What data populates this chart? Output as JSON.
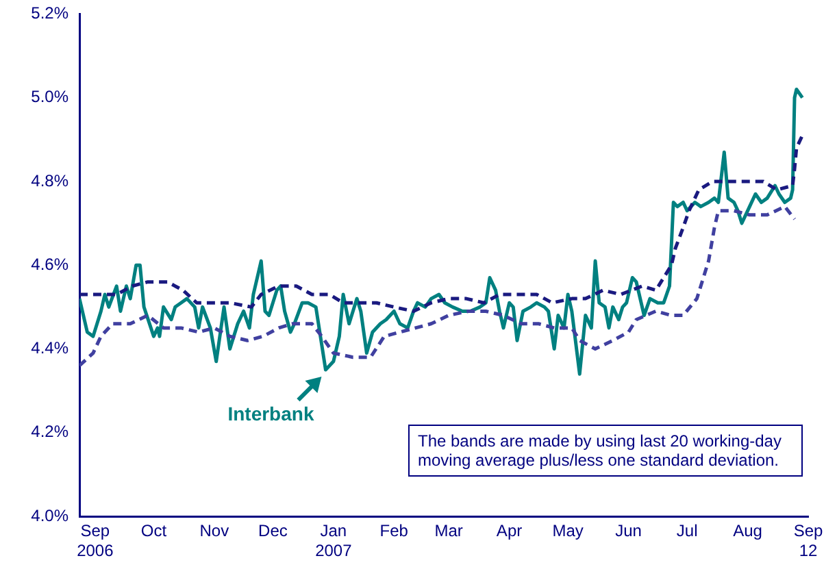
{
  "chart_data": {
    "type": "line",
    "xlim": [
      "2006-09-04",
      "2007-09-12"
    ],
    "xticks": [
      {
        "value": "2006-09-12",
        "label": "Sep\n2006"
      },
      {
        "value": "2006-10-12",
        "label": "Oct"
      },
      {
        "value": "2006-11-12",
        "label": "Nov"
      },
      {
        "value": "2006-12-12",
        "label": "Dec"
      },
      {
        "value": "2007-01-12",
        "label": "Jan\n2007"
      },
      {
        "value": "2007-02-12",
        "label": "Feb"
      },
      {
        "value": "2007-03-12",
        "label": "Mar"
      },
      {
        "value": "2007-04-12",
        "label": "Apr"
      },
      {
        "value": "2007-05-12",
        "label": "May"
      },
      {
        "value": "2007-06-12",
        "label": "Jun"
      },
      {
        "value": "2007-07-12",
        "label": "Jul"
      },
      {
        "value": "2007-08-12",
        "label": "Aug"
      },
      {
        "value": "2007-09-12",
        "label": "Sep\n12"
      }
    ],
    "ylim": [
      4.0,
      5.2
    ],
    "yticks": [
      {
        "value": 4.0,
        "label": "4.0%"
      },
      {
        "value": 4.2,
        "label": "4.2%"
      },
      {
        "value": 4.4,
        "label": "4.4%"
      },
      {
        "value": 4.6,
        "label": "4.6%"
      },
      {
        "value": 4.8,
        "label": "4.8%"
      },
      {
        "value": 5.0,
        "label": "5.0%"
      },
      {
        "value": 5.2,
        "label": "5.2%"
      }
    ],
    "grid": false,
    "legend": false,
    "marker": "none",
    "series": [
      {
        "color": "#1a1a80",
        "line_style": "dashed",
        "x": [
          "2006-09-04",
          "2006-09-14",
          "2006-09-23",
          "2006-10-01",
          "2006-10-09",
          "2006-10-19",
          "2006-10-27",
          "2006-11-03",
          "2006-11-12",
          "2006-11-20",
          "2006-12-01",
          "2006-12-06",
          "2006-12-15",
          "2006-12-24",
          "2007-01-01",
          "2007-01-10",
          "2007-01-17",
          "2007-01-25",
          "2007-02-03",
          "2007-02-12",
          "2007-02-22",
          "2007-03-03",
          "2007-03-12",
          "2007-03-21",
          "2007-03-30",
          "2007-04-07",
          "2007-04-16",
          "2007-04-26",
          "2007-05-04",
          "2007-05-14",
          "2007-05-21",
          "2007-05-30",
          "2007-06-08",
          "2007-06-19",
          "2007-06-26",
          "2007-07-04",
          "2007-07-06",
          "2007-07-10",
          "2007-07-13",
          "2007-07-18",
          "2007-07-25",
          "2007-08-02",
          "2007-08-12",
          "2007-08-20",
          "2007-08-27",
          "2007-09-04",
          "2007-09-05",
          "2007-09-06",
          "2007-09-09"
        ],
        "values": [
          4.53,
          4.53,
          4.53,
          4.55,
          4.56,
          4.56,
          4.54,
          4.51,
          4.51,
          4.51,
          4.5,
          4.53,
          4.55,
          4.55,
          4.53,
          4.53,
          4.51,
          4.51,
          4.51,
          4.5,
          4.49,
          4.51,
          4.52,
          4.52,
          4.51,
          4.53,
          4.53,
          4.53,
          4.51,
          4.52,
          4.52,
          4.54,
          4.53,
          4.55,
          4.54,
          4.6,
          4.64,
          4.69,
          4.73,
          4.78,
          4.8,
          4.8,
          4.8,
          4.8,
          4.78,
          4.79,
          4.83,
          4.88,
          4.91
        ]
      },
      {
        "color": "#4040a0",
        "line_style": "dashed",
        "x": [
          "2006-09-04",
          "2006-09-11",
          "2006-09-15",
          "2006-09-21",
          "2006-09-30",
          "2006-10-09",
          "2006-10-17",
          "2006-10-26",
          "2006-11-04",
          "2006-11-12",
          "2006-11-20",
          "2006-11-29",
          "2006-12-07",
          "2006-12-15",
          "2006-12-22",
          "2007-01-01",
          "2007-01-06",
          "2007-01-12",
          "2007-01-22",
          "2007-01-31",
          "2007-02-07",
          "2007-02-15",
          "2007-02-23",
          "2007-03-03",
          "2007-03-12",
          "2007-03-22",
          "2007-03-31",
          "2007-04-09",
          "2007-04-18",
          "2007-04-27",
          "2007-05-05",
          "2007-05-14",
          "2007-05-18",
          "2007-05-26",
          "2007-06-04",
          "2007-06-12",
          "2007-06-16",
          "2007-06-26",
          "2007-07-04",
          "2007-07-10",
          "2007-07-17",
          "2007-07-23",
          "2007-07-26",
          "2007-07-28",
          "2007-08-05",
          "2007-08-13",
          "2007-08-22",
          "2007-08-31",
          "2007-09-05"
        ],
        "values": [
          4.36,
          4.39,
          4.43,
          4.46,
          4.46,
          4.48,
          4.45,
          4.45,
          4.44,
          4.45,
          4.43,
          4.42,
          4.43,
          4.45,
          4.46,
          4.46,
          4.43,
          4.39,
          4.38,
          4.38,
          4.43,
          4.44,
          4.45,
          4.46,
          4.48,
          4.49,
          4.49,
          4.48,
          4.46,
          4.46,
          4.45,
          4.45,
          4.42,
          4.4,
          4.42,
          4.44,
          4.47,
          4.49,
          4.48,
          4.48,
          4.52,
          4.61,
          4.69,
          4.73,
          4.73,
          4.72,
          4.72,
          4.74,
          4.71
        ]
      },
      {
        "color": "#008080",
        "line_style": "solid",
        "x": [
          "2006-09-04",
          "2006-09-08",
          "2006-09-11",
          "2006-09-15",
          "2006-09-17",
          "2006-09-19",
          "2006-09-23",
          "2006-09-25",
          "2006-09-28",
          "2006-09-30",
          "2006-10-03",
          "2006-10-05",
          "2006-10-07",
          "2006-10-12",
          "2006-10-14",
          "2006-10-15",
          "2006-10-17",
          "2006-10-21",
          "2006-10-23",
          "2006-10-26",
          "2006-10-29",
          "2006-11-02",
          "2006-11-04",
          "2006-11-06",
          "2006-11-10",
          "2006-11-13",
          "2006-11-17",
          "2006-11-20",
          "2006-11-24",
          "2006-11-27",
          "2006-11-30",
          "2006-12-02",
          "2006-12-06",
          "2006-12-08",
          "2006-12-10",
          "2006-12-14",
          "2006-12-16",
          "2006-12-18",
          "2006-12-21",
          "2006-12-23",
          "2006-12-27",
          "2006-12-30",
          "2007-01-03",
          "2007-01-08",
          "2007-01-12",
          "2007-01-15",
          "2007-01-17",
          "2007-01-20",
          "2007-01-24",
          "2007-01-26",
          "2007-01-29",
          "2007-02-01",
          "2007-02-05",
          "2007-02-08",
          "2007-02-12",
          "2007-02-15",
          "2007-02-19",
          "2007-02-22",
          "2007-02-24",
          "2007-02-28",
          "2007-03-03",
          "2007-03-07",
          "2007-03-10",
          "2007-03-14",
          "2007-03-19",
          "2007-03-23",
          "2007-03-28",
          "2007-03-31",
          "2007-04-02",
          "2007-04-05",
          "2007-04-07",
          "2007-04-09",
          "2007-04-12",
          "2007-04-14",
          "2007-04-16",
          "2007-04-19",
          "2007-04-23",
          "2007-04-26",
          "2007-04-30",
          "2007-05-02",
          "2007-05-05",
          "2007-05-07",
          "2007-05-10",
          "2007-05-12",
          "2007-05-14",
          "2007-05-18",
          "2007-05-21",
          "2007-05-24",
          "2007-05-26",
          "2007-05-28",
          "2007-05-31",
          "2007-06-02",
          "2007-06-04",
          "2007-06-07",
          "2007-06-09",
          "2007-06-11",
          "2007-06-14",
          "2007-06-16",
          "2007-06-20",
          "2007-06-23",
          "2007-06-27",
          "2007-06-30",
          "2007-07-03",
          "2007-07-05",
          "2007-07-07",
          "2007-07-10",
          "2007-07-12",
          "2007-07-16",
          "2007-07-19",
          "2007-07-23",
          "2007-07-26",
          "2007-07-28",
          "2007-07-31",
          "2007-08-02",
          "2007-08-05",
          "2007-08-07",
          "2007-08-09",
          "2007-08-13",
          "2007-08-16",
          "2007-08-19",
          "2007-08-22",
          "2007-08-26",
          "2007-08-28",
          "2007-08-31",
          "2007-09-03",
          "2007-09-04",
          "2007-09-05",
          "2007-09-06",
          "2007-09-09"
        ],
        "values": [
          4.52,
          4.44,
          4.43,
          4.49,
          4.53,
          4.5,
          4.55,
          4.49,
          4.55,
          4.52,
          4.6,
          4.6,
          4.5,
          4.43,
          4.45,
          4.43,
          4.5,
          4.47,
          4.5,
          4.51,
          4.52,
          4.5,
          4.45,
          4.5,
          4.45,
          4.37,
          4.5,
          4.4,
          4.46,
          4.49,
          4.45,
          4.53,
          4.61,
          4.49,
          4.48,
          4.54,
          4.55,
          4.49,
          4.44,
          4.46,
          4.51,
          4.51,
          4.5,
          4.35,
          4.37,
          4.43,
          4.53,
          4.46,
          4.52,
          4.49,
          4.39,
          4.44,
          4.46,
          4.47,
          4.49,
          4.46,
          4.45,
          4.49,
          4.51,
          4.5,
          4.52,
          4.53,
          4.51,
          4.5,
          4.49,
          4.49,
          4.5,
          4.51,
          4.57,
          4.54,
          4.49,
          4.45,
          4.51,
          4.5,
          4.42,
          4.49,
          4.5,
          4.51,
          4.5,
          4.49,
          4.4,
          4.48,
          4.45,
          4.53,
          4.49,
          4.34,
          4.48,
          4.45,
          4.61,
          4.51,
          4.5,
          4.45,
          4.5,
          4.47,
          4.5,
          4.51,
          4.57,
          4.56,
          4.48,
          4.52,
          4.51,
          4.51,
          4.55,
          4.75,
          4.74,
          4.75,
          4.73,
          4.75,
          4.74,
          4.75,
          4.76,
          4.75,
          4.87,
          4.76,
          4.75,
          4.73,
          4.7,
          4.74,
          4.77,
          4.75,
          4.76,
          4.79,
          4.77,
          4.75,
          4.76,
          4.78,
          5.0,
          5.02,
          5.0
        ]
      }
    ],
    "annotations": [
      {
        "text": "Interbank",
        "x": "2007-01-08",
        "y": 4.35
      },
      "The bands are made by using last 20 working-day moving average plus/less one standard deviation."
    ]
  }
}
